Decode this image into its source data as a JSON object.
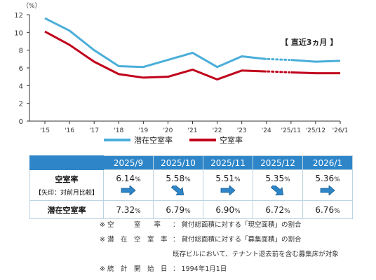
{
  "chart_data": {
    "type": "line",
    "y_unit": "（%）",
    "ylim": [
      0,
      12
    ],
    "yticks": [
      "0",
      "2",
      "4",
      "6",
      "8",
      "10",
      "12"
    ],
    "categories": [
      "'15",
      "'16",
      "'17",
      "'18",
      "'19",
      "'20",
      "'21",
      "'22",
      "'23",
      "'24",
      "'25/11",
      "'25/12",
      "'26/1"
    ],
    "series": [
      {
        "name": "潜在空室率",
        "color": "#4aaed9",
        "values": [
          11.6,
          10.2,
          8.0,
          6.2,
          6.1,
          6.9,
          7.7,
          6.1,
          7.3,
          7.0,
          6.9,
          6.7,
          6.8
        ]
      },
      {
        "name": "空室率",
        "color": "#c0001b",
        "values": [
          10.1,
          8.6,
          6.7,
          5.3,
          4.9,
          5.0,
          5.8,
          4.7,
          5.7,
          5.6,
          5.5,
          5.4,
          5.4
        ]
      }
    ]
  },
  "recent_label": "【 直近3ヵ月 】",
  "table": {
    "months": [
      "2025/9",
      "2025/10",
      "2025/11",
      "2025/12",
      "2026/1"
    ],
    "vacancy_label": "空室率",
    "arrow_caption": "【矢印：対前月比較】",
    "vacancy_values": [
      "6.14",
      "5.58",
      "5.51",
      "5.35",
      "5.36"
    ],
    "arrows": [
      "flat",
      "down",
      "flat",
      "down",
      "flat"
    ],
    "potential_label": "潜在空室率",
    "potential_values": [
      "7.32",
      "6.79",
      "6.90",
      "6.72",
      "6.76"
    ],
    "percent": "%"
  },
  "notes": [
    {
      "key": "※ 空　　　室　　率",
      "text": "： 貸付総面積に対する「現空面積」の割合"
    },
    {
      "key": "※ 潜　在　空　室　率",
      "text": "： 貸付総面積に対する「募集面積」の割合"
    },
    {
      "key": "",
      "text": "既存ビルにおいて、テナント退去前を含む募集床が対象"
    },
    {
      "key": "※ 統　計　開　始　日",
      "text": "： 1994年1月1日"
    }
  ]
}
